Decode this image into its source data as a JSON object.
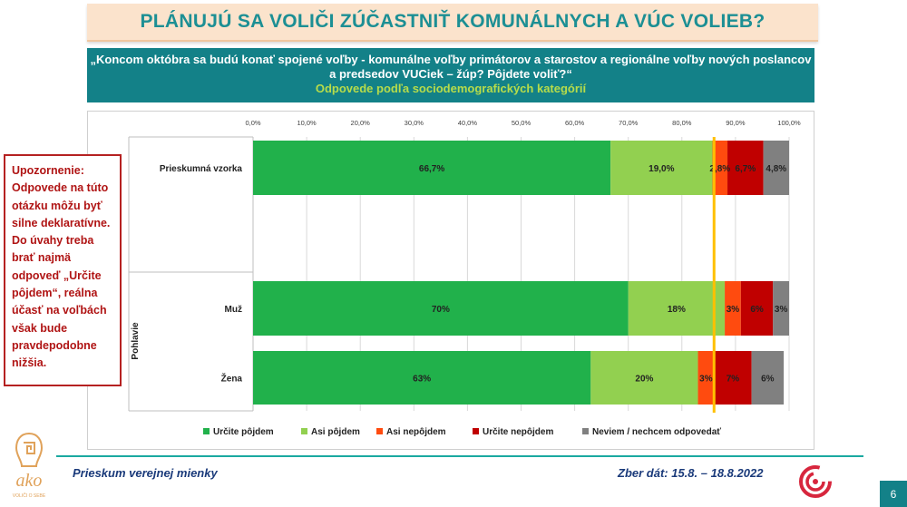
{
  "title": "PLÁNUJÚ SA VOLIČI ZÚČASTNIŤ KOMUNÁLNYCH A VÚC VOLIEB?",
  "question": {
    "line1": "„Koncom októbra sa budú konať spojené voľby - komunálne voľby primátorov a starostov a regionálne voľby nových poslancov",
    "line2": "a predsedov VUCiek – žúp? Pôjdete voliť?“",
    "subtitle": "Odpovede podľa sociodemografických kategórií"
  },
  "warning": {
    "lines": [
      "Upozornenie:",
      "Odpovede na túto",
      "otázku môžu byť",
      "silne deklaratívne.",
      "Do úvahy treba",
      "brať najmä",
      "odpoveď „Určite",
      "pôjdem“, reálna",
      "účasť na voľbách",
      "však bude",
      "pravdepodobne",
      "nižšia."
    ]
  },
  "footer": {
    "left": "Prieskum verejnej mienky",
    "right": "Zber dát: 15.8. – 18.8.2022",
    "page": "6"
  },
  "logo": {
    "text": "ako",
    "tagline": "VOLIČI O SEBE"
  },
  "chart_data": {
    "type": "bar",
    "orientation": "horizontal",
    "stacked": true,
    "title": "",
    "xlim": [
      0,
      100
    ],
    "x_ticks": [
      "0,0%",
      "10,0%",
      "20,0%",
      "30,0%",
      "40,0%",
      "50,0%",
      "60,0%",
      "70,0%",
      "80,0%",
      "90,0%",
      "100,0%"
    ],
    "group_label": "Pohlavie",
    "categories": [
      "Prieskumná vzorka",
      "Muž",
      "Žena"
    ],
    "series": [
      {
        "name": "Určite pôjdem",
        "color": "#21b14b",
        "values": [
          66.7,
          70,
          63
        ],
        "labels": [
          "66,7%",
          "70%",
          "63%"
        ]
      },
      {
        "name": "Asi pôjdem",
        "color": "#92d050",
        "values": [
          19.0,
          18,
          20
        ],
        "labels": [
          "19,0%",
          "18%",
          "20%"
        ]
      },
      {
        "name": "Asi nepôjdem",
        "color": "#ff4b0f",
        "values": [
          2.8,
          3,
          3
        ],
        "labels": [
          "2,8%",
          "3%",
          "3%"
        ]
      },
      {
        "name": "Určite nepôjdem",
        "color": "#c00000",
        "values": [
          6.7,
          6,
          7
        ],
        "labels": [
          "6,7%",
          "6%",
          "7%"
        ]
      },
      {
        "name": "Neviem / nechcem odpovedať",
        "color": "#808080",
        "values": [
          4.8,
          3,
          6
        ],
        "labels": [
          "4,8%",
          "3%",
          "6%"
        ]
      }
    ],
    "reference_line": {
      "value": 86,
      "color": "#ffc000"
    }
  }
}
